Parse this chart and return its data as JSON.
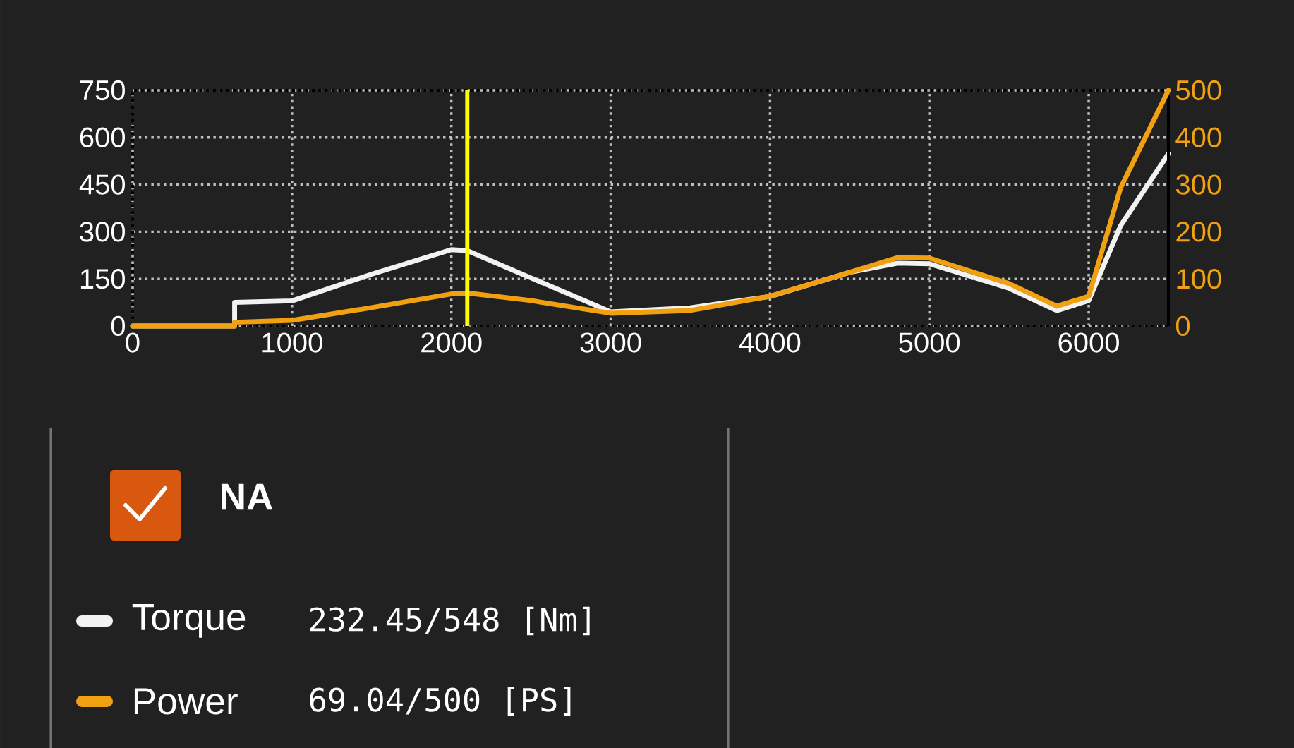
{
  "chart_data": {
    "type": "line",
    "legend_title": "NA",
    "legend": "bottom",
    "grid": true,
    "marker": "none",
    "line_style": "solid",
    "xlim": [
      0,
      6500
    ],
    "xticks": [
      0,
      1000,
      2000,
      3000,
      4000,
      5000,
      6000
    ],
    "ylim": [
      0,
      750
    ],
    "yticks": [
      0,
      150,
      300,
      450,
      600,
      750
    ],
    "y2lim": [
      0,
      500
    ],
    "y2ticks": [
      0,
      100,
      200,
      300,
      400,
      500
    ],
    "series": [
      {
        "name": "Torque",
        "color": "#f2f2f2",
        "x": [
          0,
          640,
          640,
          1000,
          1500,
          2000,
          2100,
          2500,
          3000,
          3500,
          4000,
          4500,
          4800,
          5000,
          5500,
          5800,
          6000,
          6200,
          6500
        ],
        "values": [
          0,
          0,
          75,
          80,
          165,
          243,
          240,
          153,
          45,
          58,
          94,
          171,
          200,
          198,
          120,
          49,
          81,
          319,
          548
        ]
      },
      {
        "name": "Power",
        "color": "#f0a010",
        "axis": "y2",
        "x": [
          0,
          640,
          640,
          1000,
          1500,
          2000,
          2100,
          2500,
          3000,
          3500,
          4000,
          4500,
          4800,
          5000,
          5500,
          5800,
          6000,
          6200,
          6500
        ],
        "values": [
          0,
          0,
          8,
          12,
          39,
          68,
          70,
          54,
          27,
          33,
          63,
          114,
          145,
          144,
          90,
          42,
          63,
          293,
          500
        ]
      }
    ],
    "ref_lines": [
      {
        "axis": "x",
        "value": 2100,
        "color": "#ffff00"
      }
    ],
    "annotations": [
      "232.45/548 [Nm]",
      "69.04/500 [PS]"
    ]
  }
}
